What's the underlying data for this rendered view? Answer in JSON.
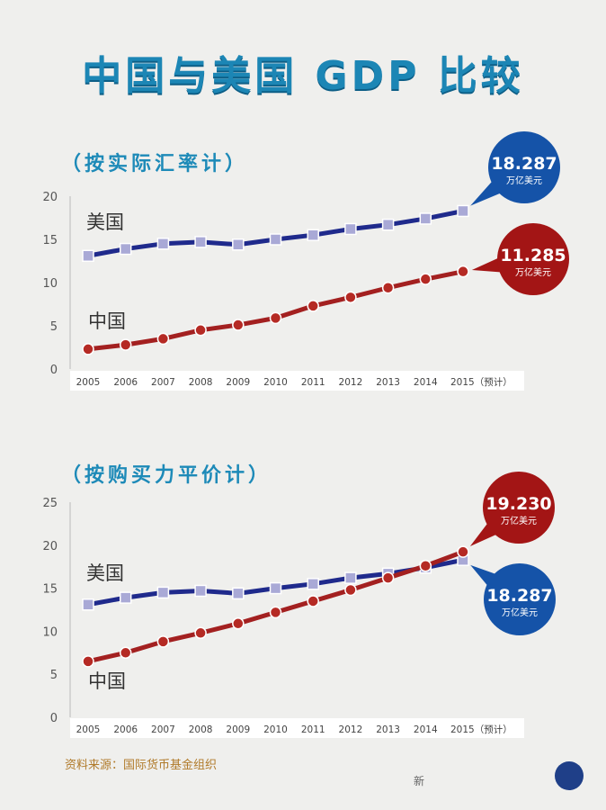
{
  "page": {
    "title": "中国与美国 GDP 比较",
    "source": "资料来源：国际货币基金组织",
    "footer": "新"
  },
  "chart_data": [
    {
      "type": "line",
      "subtitle": "（按实际汇率计）",
      "categories": [
        "2005",
        "2006",
        "2007",
        "2008",
        "2009",
        "2010",
        "2011",
        "2012",
        "2013",
        "2014",
        "2015（预计）"
      ],
      "ylim": [
        0,
        20
      ],
      "yticks": [
        0,
        5,
        10,
        15,
        20
      ],
      "grid": false,
      "series": [
        {
          "name": "美国",
          "color": "#1f2a8c",
          "marker": "square",
          "values": [
            13.1,
            13.9,
            14.5,
            14.7,
            14.4,
            15.0,
            15.5,
            16.2,
            16.7,
            17.4,
            18.287
          ]
        },
        {
          "name": "中国",
          "color": "#a32020",
          "marker": "circle",
          "values": [
            2.3,
            2.8,
            3.5,
            4.5,
            5.1,
            5.9,
            7.3,
            8.3,
            9.4,
            10.4,
            11.285
          ]
        }
      ],
      "callouts": [
        {
          "series": "美国",
          "value": "18.287",
          "unit": "万亿美元",
          "color": "#1553a8"
        },
        {
          "series": "中国",
          "value": "11.285",
          "unit": "万亿美元",
          "color": "#a31515"
        }
      ]
    },
    {
      "type": "line",
      "subtitle": "（按购买力平价计）",
      "categories": [
        "2005",
        "2006",
        "2007",
        "2008",
        "2009",
        "2010",
        "2011",
        "2012",
        "2013",
        "2014",
        "2015（预计）"
      ],
      "ylim": [
        0,
        25
      ],
      "yticks": [
        0,
        5,
        10,
        15,
        20,
        25
      ],
      "grid": false,
      "series": [
        {
          "name": "美国",
          "color": "#1f2a8c",
          "marker": "square",
          "values": [
            13.1,
            13.9,
            14.5,
            14.7,
            14.4,
            15.0,
            15.5,
            16.2,
            16.7,
            17.4,
            18.287
          ]
        },
        {
          "name": "中国",
          "color": "#a32020",
          "marker": "circle",
          "values": [
            6.5,
            7.5,
            8.8,
            9.8,
            10.9,
            12.2,
            13.5,
            14.8,
            16.2,
            17.6,
            19.23
          ]
        }
      ],
      "callouts": [
        {
          "series": "中国",
          "value": "19.230",
          "unit": "万亿美元",
          "color": "#a31515"
        },
        {
          "series": "美国",
          "value": "18.287",
          "unit": "万亿美元",
          "color": "#1553a8"
        }
      ]
    }
  ]
}
